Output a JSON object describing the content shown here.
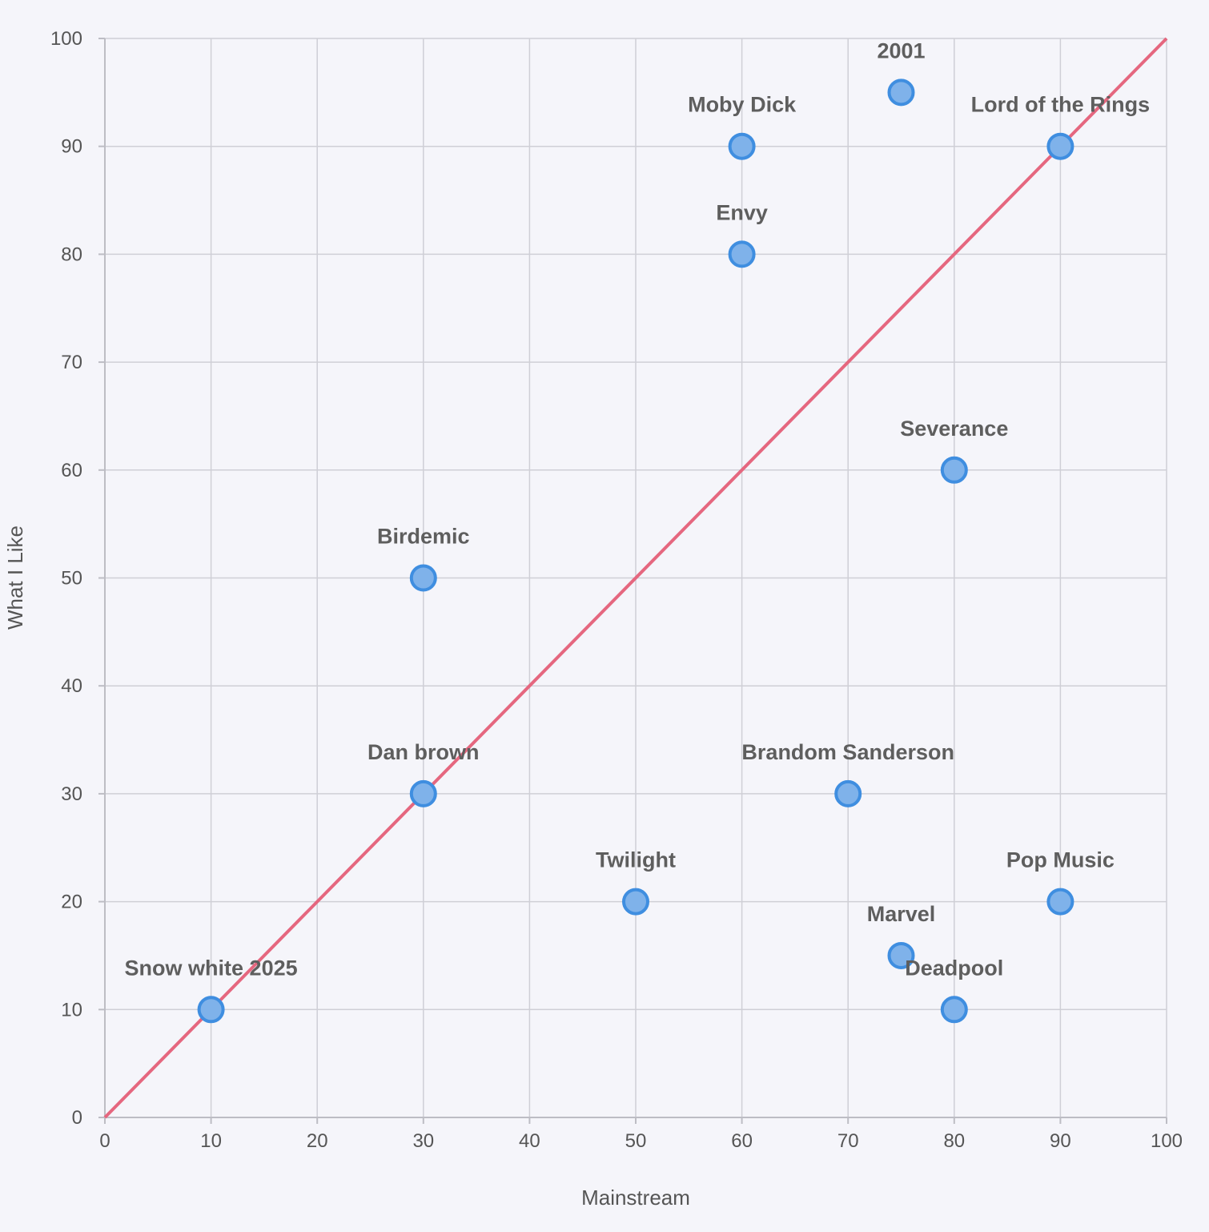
{
  "chart_data": {
    "type": "scatter",
    "xlabel": "Mainstream",
    "ylabel": "What I Like",
    "xlim": [
      0,
      100
    ],
    "ylim": [
      0,
      100
    ],
    "x_ticks": [
      0,
      10,
      20,
      30,
      40,
      50,
      60,
      70,
      80,
      90,
      100
    ],
    "y_ticks": [
      0,
      10,
      20,
      30,
      40,
      50,
      60,
      70,
      80,
      90,
      100
    ],
    "grid": true,
    "reference_line": {
      "type": "y=x",
      "from": [
        0,
        0
      ],
      "to": [
        100,
        100
      ],
      "color": "#e5677f"
    },
    "point_color": "#7fb2ea",
    "point_border_color": "#3f8ee0",
    "points": [
      {
        "label": "2001",
        "x": 75,
        "y": 95
      },
      {
        "label": "Moby Dick",
        "x": 60,
        "y": 90
      },
      {
        "label": "Lord of the Rings",
        "x": 90,
        "y": 90
      },
      {
        "label": "Envy",
        "x": 60,
        "y": 80
      },
      {
        "label": "Severance",
        "x": 80,
        "y": 60
      },
      {
        "label": "Birdemic",
        "x": 30,
        "y": 50
      },
      {
        "label": "Dan brown",
        "x": 30,
        "y": 30
      },
      {
        "label": "Brandom Sanderson",
        "x": 70,
        "y": 30
      },
      {
        "label": "Twilight",
        "x": 50,
        "y": 20
      },
      {
        "label": "Pop Music",
        "x": 90,
        "y": 20
      },
      {
        "label": "Marvel",
        "x": 75,
        "y": 15
      },
      {
        "label": "Snow white 2025",
        "x": 10,
        "y": 10
      },
      {
        "label": "Deadpool",
        "x": 80,
        "y": 10
      }
    ]
  }
}
